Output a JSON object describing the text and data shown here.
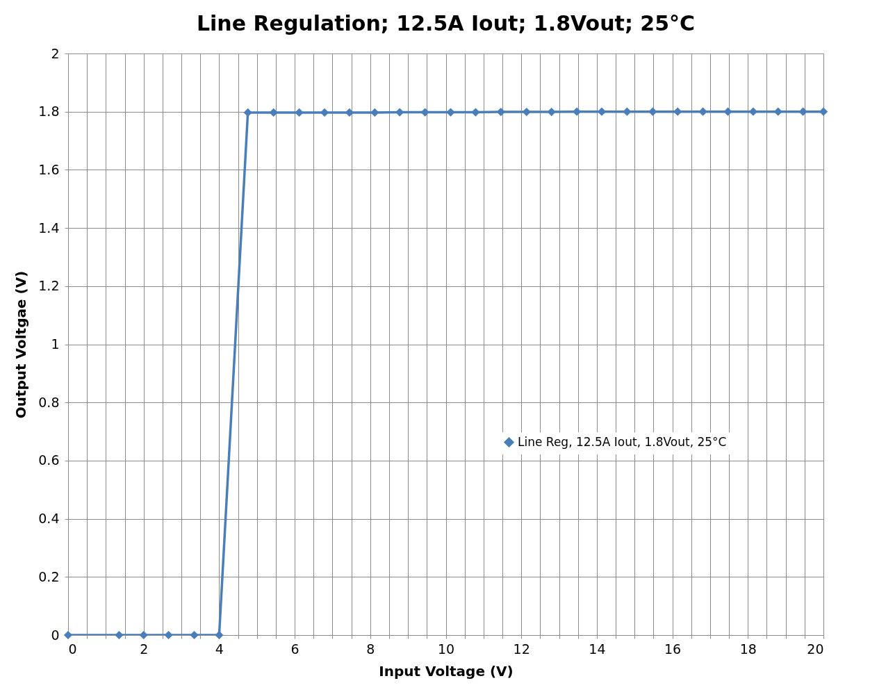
{
  "chart_data": {
    "type": "line",
    "title": "Line Regulation; 12.5A Iout; 1.8Vout; 25°C",
    "xlabel": "Input Voltage (V)",
    "ylabel": "Output Voltgae (V)",
    "x": [
      0,
      1.35,
      2,
      2.66,
      3.34,
      4,
      4.76,
      5.44,
      6.12,
      6.79,
      7.45,
      8.12,
      8.78,
      9.45,
      10.13,
      10.79,
      11.46,
      12.14,
      12.8,
      13.47,
      14.13,
      14.8,
      15.48,
      16.14,
      16.81,
      17.47,
      18.14,
      18.8,
      19.46,
      20
    ],
    "series": [
      {
        "name": "Line Reg, 12.5A Iout, 1.8Vout, 25°C",
        "color": "#4a7ebb",
        "values": [
          0,
          0,
          0,
          0,
          0,
          0,
          1.797,
          1.797,
          1.797,
          1.797,
          1.797,
          1.797,
          1.798,
          1.798,
          1.798,
          1.798,
          1.799,
          1.799,
          1.799,
          1.8,
          1.8,
          1.8,
          1.8,
          1.8,
          1.8,
          1.8,
          1.8,
          1.8,
          1.8,
          1.8
        ]
      }
    ],
    "xlim": [
      0,
      20
    ],
    "ylim": [
      0,
      2
    ],
    "xticks": [
      0,
      {
        "value": 0.5,
        "label": null
      },
      {
        "value": 1,
        "label": null
      },
      {
        "value": 1.5,
        "label": null
      },
      2,
      {
        "value": 2.5,
        "label": null
      },
      {
        "value": 3,
        "label": null
      },
      {
        "value": 3.5,
        "label": null
      },
      4,
      {
        "value": 4.5,
        "label": null
      },
      {
        "value": 5,
        "label": null
      },
      {
        "value": 5.5,
        "label": null
      },
      6,
      {
        "value": 6.5,
        "label": null
      },
      {
        "value": 7,
        "label": null
      },
      {
        "value": 7.5,
        "label": null
      },
      8,
      {
        "value": 8.5,
        "label": null
      },
      {
        "value": 9,
        "label": null
      },
      {
        "value": 9.5,
        "label": null
      },
      10,
      {
        "value": 10.5,
        "label": null
      },
      {
        "value": 11,
        "label": null
      },
      {
        "value": 11.5,
        "label": null
      },
      12,
      {
        "value": 12.5,
        "label": null
      },
      {
        "value": 13,
        "label": null
      },
      {
        "value": 13.5,
        "label": null
      },
      14,
      {
        "value": 14.5,
        "label": null
      },
      {
        "value": 15,
        "label": null
      },
      {
        "value": 15.5,
        "label": null
      },
      16,
      {
        "value": 16.5,
        "label": null
      },
      {
        "value": 17,
        "label": null
      },
      {
        "value": 17.5,
        "label": null
      },
      18,
      {
        "value": 18.5,
        "label": null
      },
      {
        "value": 19,
        "label": null
      },
      {
        "value": 19.5,
        "label": null
      },
      20
    ],
    "yticks": [
      0,
      0.2,
      0.4,
      0.6,
      0.8,
      1,
      1.2,
      1.4,
      1.6,
      1.8,
      2
    ],
    "grid": true,
    "legend": "right",
    "marker": "diamond",
    "line_style": "solid"
  }
}
